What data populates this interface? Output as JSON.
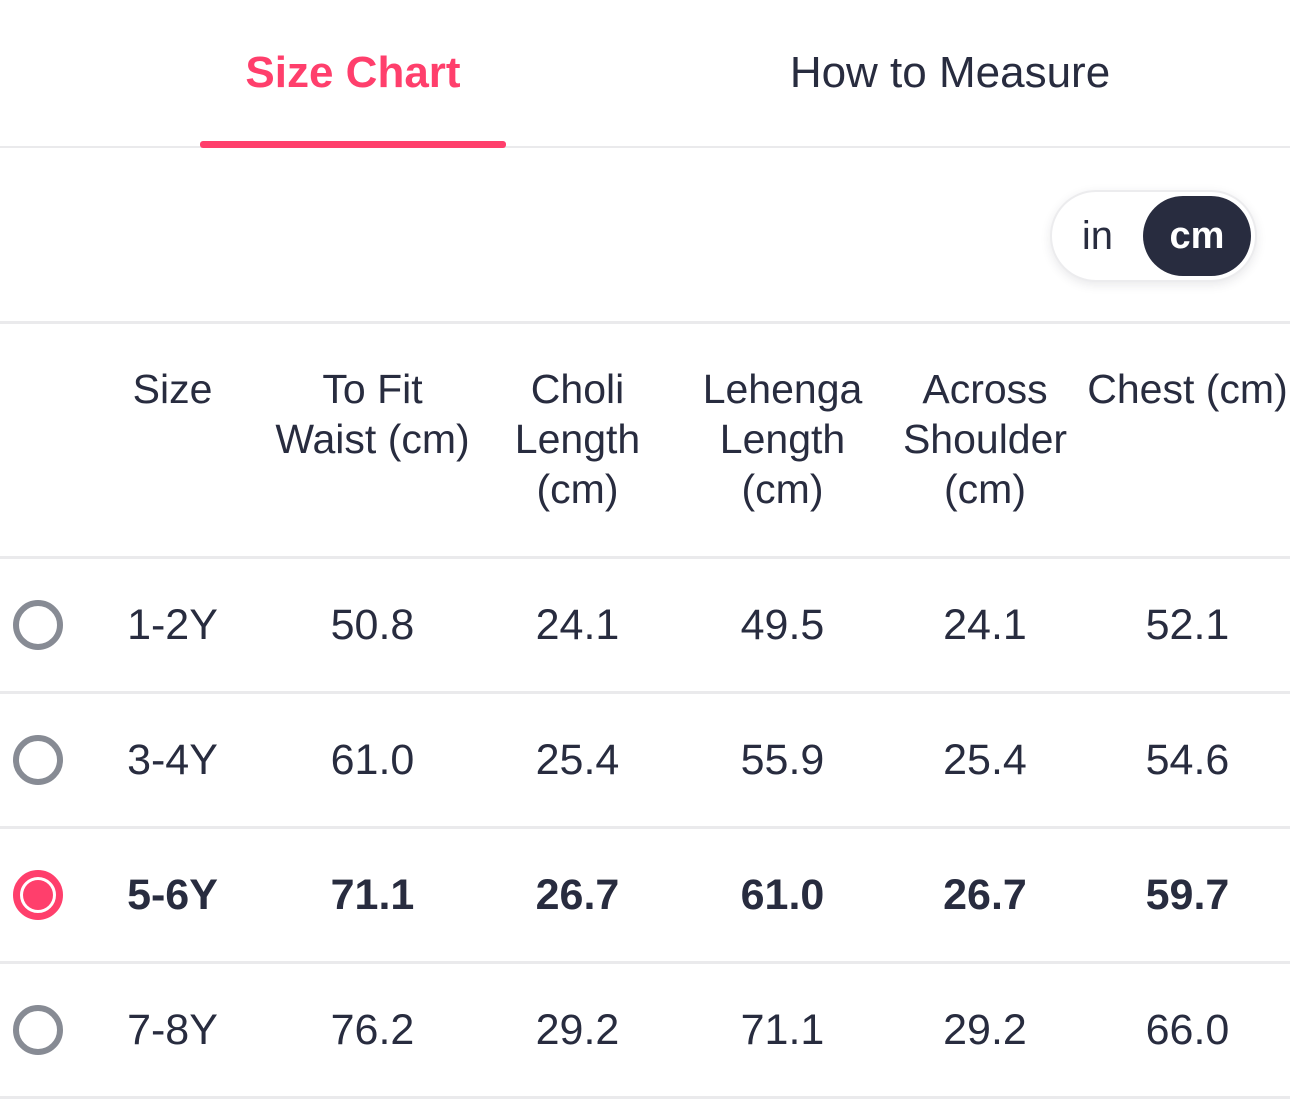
{
  "tabs": {
    "size_chart_label": "Size Chart",
    "how_to_measure_label": "How to Measure"
  },
  "unit_toggle": {
    "in_label": "in",
    "cm_label": "cm",
    "selected_unit": "cm"
  },
  "table": {
    "headers": [
      "Size",
      "To Fit\nWaist (cm)",
      "Choli\nLength\n(cm)",
      "Lehenga\nLength\n(cm)",
      "Across\nShoulder\n(cm)",
      "Chest (cm)"
    ],
    "rows": [
      {
        "size": "1-2Y",
        "to_fit_waist": "50.8",
        "choli_length": "24.1",
        "lehenga_length": "49.5",
        "across_shoulder": "24.1",
        "chest": "52.1",
        "selected": false
      },
      {
        "size": "3-4Y",
        "to_fit_waist": "61.0",
        "choli_length": "25.4",
        "lehenga_length": "55.9",
        "across_shoulder": "25.4",
        "chest": "54.6",
        "selected": false
      },
      {
        "size": "5-6Y",
        "to_fit_waist": "71.1",
        "choli_length": "26.7",
        "lehenga_length": "61.0",
        "across_shoulder": "26.7",
        "chest": "59.7",
        "selected": true
      },
      {
        "size": "7-8Y",
        "to_fit_waist": "76.2",
        "choli_length": "29.2",
        "lehenga_length": "71.1",
        "across_shoulder": "29.2",
        "chest": "66.0",
        "selected": false
      }
    ]
  },
  "colors": {
    "accent_pink": "#ff3f6c",
    "dark_navy": "#282c3f",
    "divider_gray": "#eaeaec",
    "radio_gray": "#878b94"
  }
}
